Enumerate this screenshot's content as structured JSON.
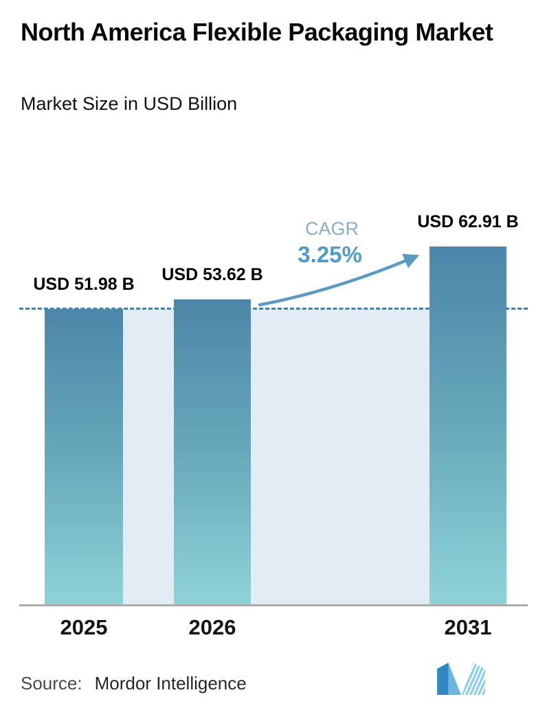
{
  "page": {
    "title": "North America Flexible Packaging Market",
    "subtitle": "Market Size in USD Billion"
  },
  "source": {
    "label": "Source:",
    "value": "Mordor Intelligence"
  },
  "chart_data": {
    "type": "bar",
    "title": "North America Flexible Packaging Market",
    "subtitle": "Market Size in USD Billion",
    "unit": "USD Billion",
    "categories": [
      "2025",
      "2026",
      "2031"
    ],
    "values": [
      51.98,
      53.62,
      62.91
    ],
    "value_labels": [
      "USD 51.98 B",
      "USD 53.62 B",
      "USD 62.91 B"
    ],
    "ylim": [
      0,
      76
    ],
    "grid": false,
    "legend": false,
    "dashed_line_value": 51.98,
    "cagr": {
      "label": "CAGR",
      "value": "3.25%",
      "from": "2026",
      "to": "2031"
    },
    "colors": {
      "bar_gradient_top": "#4c86a9",
      "bar_gradient_bottom": "#8fd3d8",
      "band_fill": "#e2ecf4",
      "dashed_line": "#477da6",
      "cagr_label_text": "#85aecb",
      "cagr_value_text": "#4e9bc8",
      "arrow": "#5b9ac4",
      "axis_line": "#ababab",
      "logo_blue": "#2f89c5",
      "logo_light_blue": "#8ccdea"
    }
  }
}
